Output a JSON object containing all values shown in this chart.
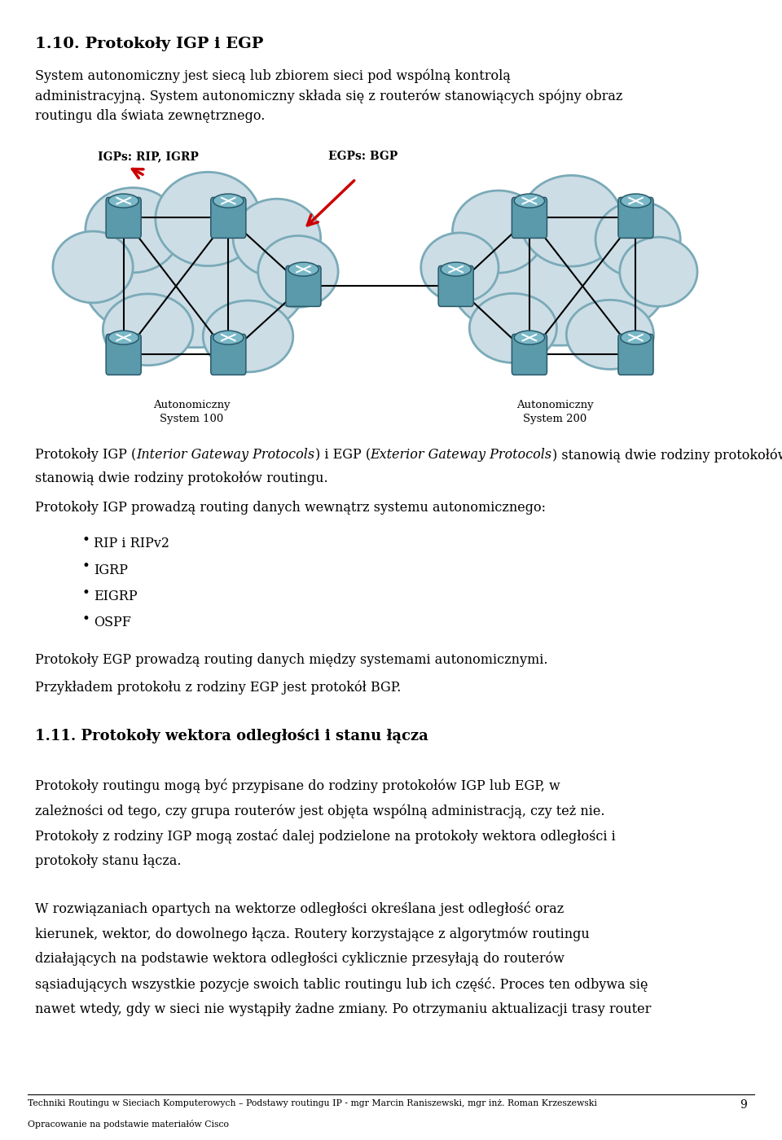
{
  "title": "1.10. Protokoły IGP i EGP",
  "page_bg": "#ffffff",
  "text_color": "#000000",
  "footer_line1": "Techniki Routingu w Sieciach Komputerowych – Podstawy routingu IP - mgr Marcin Raniszewski, mgr inż. Roman Krzeszewski",
  "footer_line2": "Opracowanie na podstawie materiałów Cisco",
  "footer_page": "9",
  "cloud_color": "#ccdde5",
  "cloud_edge": "#7aaab8",
  "router_color": "#5a9aaa",
  "router_top_color": "#7ab8c8",
  "router_edge": "#2a5a6a",
  "conn_color": "#000000",
  "arrow_color": "#cc0000",
  "igp_label": "IGPs: RIP, IGRP",
  "egp_label": "EGPs: BGP",
  "as100_label": "Autonomiczny\nSystem 100",
  "as200_label": "Autonomiczny\nSystem 200",
  "para1_lines": [
    "System autonomiczny jest siecą lub zbiorem sieci pod wspólną kontrolą",
    "administracyjną. System autonomiczny składa się z routerów stanowiących spójny obraz",
    "routingu dla świata zewnętrznego."
  ],
  "igp_intro_line1": "Protokoły IGP (",
  "igp_intro_italic1": "Interior Gateway Protocols",
  "igp_intro_mid": ") i EGP (",
  "igp_intro_italic2": "Exterior Gateway Protocols",
  "igp_intro_end": ") stanowią dwie rodziny protokołów routingu.",
  "igp_routing_line": "Protokoły IGP prowadzą routing danych wewnątrz systemu autonomicznego:",
  "bullet_items": [
    "RIP i RIPv2",
    "IGRP",
    "EIGRP",
    "OSPF"
  ],
  "egp_line": "Protokoły EGP prowadzą routing danych między systemami autonomicznymi.",
  "bgp_line": "Przykładem protokołu z rodziny EGP jest protokół BGP.",
  "section2_title": "1.11. Protokoły wektora odległości i stanu łącza",
  "s2p1_lines": [
    "Protokoły routingu mogą być przypisane do rodziny protokołów IGP lub EGP, w",
    "zależności od tego, czy grupa routerów jest objęta wspólną administracją, czy też nie.",
    "Protokoły z rodziny IGP mogą zostać dalej podzielone na protokoły wektora odległości i",
    "protokoły stanu łącza."
  ],
  "s2p2_lines": [
    "W rozwiązaniach opartych na wektorze odległości określana jest odległość oraz",
    "kierunek, wektor, do dowolnego łącza. Routery korzystające z algorytmów routingu",
    "działających na podstawie wektora odległości cyklicznie przesyłają do routerów",
    "sąsiadujących wszystkie pozycje swoich tablic routingu lub ich część. Proces ten odbywa się",
    "nawet wtedy, gdy w sieci nie wystąpiły żadne zmiany. Po otrzymaniu aktualizacji trasy router"
  ]
}
